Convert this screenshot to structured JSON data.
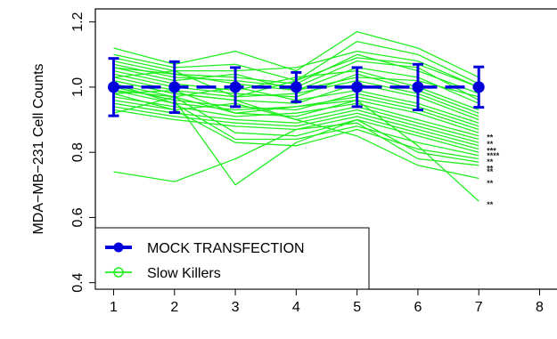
{
  "chart_data": {
    "type": "line",
    "title": "",
    "xlabel": "",
    "ylabel": "MDA−MB−231 Cell Counts",
    "xlim": [
      0.7,
      8.3
    ],
    "ylim": [
      0.38,
      1.24
    ],
    "x_ticks": [
      1,
      2,
      3,
      4,
      5,
      6,
      7,
      8
    ],
    "y_ticks": [
      0.4,
      0.6,
      0.8,
      1.0,
      1.2
    ],
    "y_tick_labels": [
      "0.4",
      "0.6",
      "0.8",
      "1.0",
      "1.2"
    ],
    "x": [
      1,
      2,
      3,
      4,
      5,
      6,
      7
    ],
    "legend": {
      "position": "bottom-left",
      "entries": [
        {
          "label": "MOCK TRANSFECTION",
          "color": "#0000dd"
        },
        {
          "label": "Slow Killers",
          "color": "#22ee22"
        }
      ]
    },
    "mock": {
      "name": "MOCK TRANSFECTION",
      "color": "#0000dd",
      "values": [
        1.0,
        1.0,
        1.0,
        1.0,
        1.0,
        1.0,
        1.0
      ],
      "err": [
        0.088,
        0.078,
        0.06,
        0.045,
        0.06,
        0.07,
        0.062
      ]
    },
    "slow_killers_color": "#22ee22",
    "slow_killers": [
      [
        1.12,
        1.07,
        1.11,
        1.05,
        1.17,
        1.12,
        1.03
      ],
      [
        1.1,
        1.06,
        1.07,
        1.02,
        1.14,
        1.1,
        1.01
      ],
      [
        1.09,
        1.05,
        1.05,
        1.06,
        1.11,
        1.08,
        1.0
      ],
      [
        1.08,
        1.04,
        1.03,
        1.01,
        1.1,
        1.05,
        0.98
      ],
      [
        1.07,
        1.03,
        1.02,
        1.0,
        1.08,
        1.06,
        0.96
      ],
      [
        1.06,
        1.02,
        1.04,
        0.99,
        1.06,
        1.03,
        0.95
      ],
      [
        1.05,
        1.01,
        0.99,
        1.03,
        1.05,
        1.0,
        0.93
      ],
      [
        1.04,
        1.0,
        0.98,
        0.97,
        1.04,
        0.99,
        0.92
      ],
      [
        1.03,
        0.99,
        0.97,
        0.98,
        1.02,
        0.98,
        0.91
      ],
      [
        1.02,
        0.98,
        0.96,
        0.95,
        1.01,
        0.97,
        0.9
      ],
      [
        1.01,
        0.97,
        1.0,
        0.96,
        0.99,
        0.95,
        0.89
      ],
      [
        1.0,
        0.96,
        0.94,
        0.93,
        0.98,
        0.94,
        0.88
      ],
      [
        0.99,
        0.95,
        0.93,
        0.94,
        0.97,
        0.93,
        0.87
      ],
      [
        0.98,
        0.99,
        0.92,
        0.91,
        0.96,
        0.92,
        0.86
      ],
      [
        0.97,
        0.94,
        0.91,
        0.92,
        0.95,
        0.9,
        0.85
      ],
      [
        0.96,
        0.93,
        0.95,
        0.9,
        0.94,
        0.89,
        0.84
      ],
      [
        0.95,
        0.92,
        0.9,
        0.89,
        0.93,
        0.88,
        0.83
      ],
      [
        0.94,
        0.91,
        0.89,
        0.88,
        0.92,
        0.87,
        0.82
      ],
      [
        0.93,
        0.9,
        0.88,
        0.87,
        0.91,
        0.86,
        0.81
      ],
      [
        0.92,
        0.97,
        0.86,
        0.85,
        0.9,
        0.85,
        0.8
      ],
      [
        1.01,
        0.95,
        0.84,
        0.84,
        0.88,
        0.83,
        0.79
      ],
      [
        0.98,
        0.93,
        0.83,
        0.82,
        0.87,
        0.81,
        0.78
      ],
      [
        1.0,
        0.96,
        0.7,
        0.83,
        0.9,
        0.8,
        0.77
      ],
      [
        0.74,
        0.71,
        0.78,
        0.87,
        0.89,
        0.78,
        0.76
      ],
      [
        1.02,
        0.98,
        0.96,
        0.9,
        0.85,
        0.76,
        0.72
      ],
      [
        0.99,
        0.97,
        0.92,
        0.94,
        0.96,
        0.82,
        0.65
      ],
      [
        1.06,
        1.04,
        1.01,
        0.99,
        1.03,
        1.02,
        0.97
      ],
      [
        1.03,
        1.05,
        0.97,
        1.02,
        1.09,
        1.07,
        1.0
      ]
    ],
    "significance_marks": [
      {
        "text": "**",
        "y": 0.845
      },
      {
        "text": "**",
        "y": 0.825
      },
      {
        "text": "***",
        "y": 0.805
      },
      {
        "text": "****",
        "y": 0.79
      },
      {
        "text": "**",
        "y": 0.77
      },
      {
        "text": "**",
        "y": 0.75
      },
      {
        "text": "**",
        "y": 0.74
      },
      {
        "text": "**",
        "y": 0.705
      },
      {
        "text": "**",
        "y": 0.64
      }
    ]
  }
}
